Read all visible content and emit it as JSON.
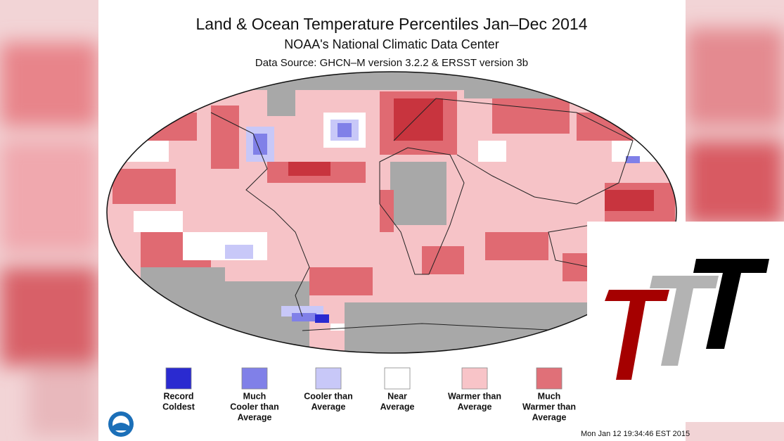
{
  "header": {
    "title": "Land & Ocean Temperature Percentiles Jan–Dec 2014",
    "subtitle": "NOAA's National Climatic Data Center",
    "source": "Data Source: GHCN–M version 3.2.2 & ERSST version 3b"
  },
  "legend": [
    {
      "lines": [
        "Record",
        "Coldest"
      ],
      "color": "#2a2ad0"
    },
    {
      "lines": [
        "Much",
        "Cooler than",
        "Average"
      ],
      "color": "#8080e8"
    },
    {
      "lines": [
        "Cooler than",
        "Average"
      ],
      "color": "#c8c8f8"
    },
    {
      "lines": [
        "Near",
        "Average"
      ],
      "color": "#ffffff"
    },
    {
      "lines": [
        "Warmer than",
        "Average"
      ],
      "color": "#f8c4c8"
    },
    {
      "lines": [
        "Much",
        "Warmer than",
        "Average"
      ],
      "color": "#e07078"
    }
  ],
  "timestamp": "Mon Jan 12 19:34:46 EST 2015"
}
